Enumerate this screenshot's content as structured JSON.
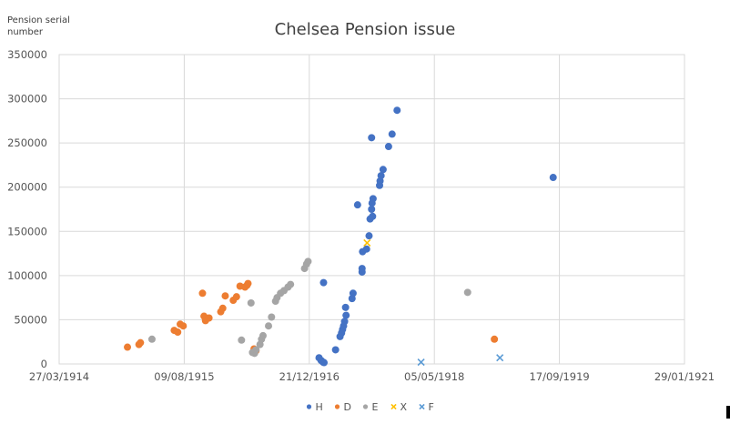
{
  "chart_data": {
    "type": "scatter",
    "title": "Chelsea Pension issue",
    "xlabel": "",
    "ylabel": "Pension serial number",
    "ylabel_lines": [
      "Pension  serial",
      "number"
    ],
    "x_axis_type": "date",
    "xlim": [
      "27/03/1914",
      "29/01/1921"
    ],
    "x_tick_labels": [
      "27/03/1914",
      "09/08/1915",
      "21/12/1916",
      "05/05/1918",
      "17/09/1919",
      "29/01/1921"
    ],
    "ylim": [
      0,
      350000
    ],
    "y_tick_labels": [
      "0",
      "50000",
      "100000",
      "150000",
      "200000",
      "250000",
      "300000",
      "350000"
    ],
    "y_ticks": [
      0,
      50000,
      100000,
      150000,
      200000,
      250000,
      300000,
      350000
    ],
    "grid": true,
    "legend_position": "bottom",
    "series": [
      {
        "name": "H",
        "color": "#4472c4",
        "marker": "circle",
        "points": [
          [
            "1917-01-29",
            7000
          ],
          [
            "1917-02-06",
            4000
          ],
          [
            "1917-02-14",
            2000
          ],
          [
            "1917-02-18",
            1500
          ],
          [
            "1917-02-16",
            92000
          ],
          [
            "1917-04-05",
            16000
          ],
          [
            "1917-04-23",
            31000
          ],
          [
            "1917-04-29",
            35000
          ],
          [
            "1917-05-03",
            39000
          ],
          [
            "1917-05-07",
            43000
          ],
          [
            "1917-05-11",
            48000
          ],
          [
            "1917-05-17",
            55000
          ],
          [
            "1917-05-15",
            64000
          ],
          [
            "1917-06-10",
            74000
          ],
          [
            "1917-06-14",
            80000
          ],
          [
            "1917-07-02",
            180000
          ],
          [
            "1917-07-20",
            104000
          ],
          [
            "1917-07-20",
            108000
          ],
          [
            "1917-07-22",
            127000
          ],
          [
            "1917-08-07",
            130000
          ],
          [
            "1917-08-17",
            145000
          ],
          [
            "1917-08-21",
            164000
          ],
          [
            "1917-08-31",
            167000
          ],
          [
            "1917-08-27",
            175000
          ],
          [
            "1917-08-29",
            182000
          ],
          [
            "1917-09-02",
            187000
          ],
          [
            "1917-08-27",
            256000
          ],
          [
            "1917-09-28",
            202000
          ],
          [
            "1917-09-30",
            207000
          ],
          [
            "1917-10-04",
            213000
          ],
          [
            "1917-10-12",
            220000
          ],
          [
            "1917-11-03",
            246000
          ],
          [
            "1917-11-17",
            260000
          ],
          [
            "1917-12-07",
            287000
          ],
          [
            "1919-08-23",
            211000
          ]
        ]
      },
      {
        "name": "D",
        "color": "#ed7d31",
        "marker": "circle",
        "points": [
          [
            "1914-12-25",
            19000
          ],
          [
            "1915-02-09",
            22000
          ],
          [
            "1915-02-15",
            24000
          ],
          [
            "1915-06-30",
            38000
          ],
          [
            "1915-07-14",
            36000
          ],
          [
            "1915-07-24",
            45000
          ],
          [
            "1915-08-05",
            43000
          ],
          [
            "1915-10-21",
            80000
          ],
          [
            "1915-10-27",
            54000
          ],
          [
            "1915-11-02",
            49000
          ],
          [
            "1915-11-16",
            52000
          ],
          [
            "1916-01-02",
            59000
          ],
          [
            "1916-01-10",
            63000
          ],
          [
            "1916-01-20",
            77000
          ],
          [
            "1916-02-21",
            72000
          ],
          [
            "1916-03-05",
            76000
          ],
          [
            "1916-03-19",
            88000
          ],
          [
            "1916-04-08",
            87000
          ],
          [
            "1916-04-16",
            89000
          ],
          [
            "1916-04-20",
            91000
          ],
          [
            "1916-05-14",
            17000
          ],
          [
            "1916-05-22",
            15000
          ],
          [
            "1918-12-31",
            28000
          ]
        ]
      },
      {
        "name": "E",
        "color": "#a5a5a5",
        "marker": "circle",
        "points": [
          [
            "1915-04-02",
            28000
          ],
          [
            "1916-03-25",
            27000
          ],
          [
            "1916-05-02",
            69000
          ],
          [
            "1916-05-08",
            13000
          ],
          [
            "1916-05-16",
            12000
          ],
          [
            "1916-05-22",
            16000
          ],
          [
            "1916-06-07",
            22000
          ],
          [
            "1916-06-13",
            28000
          ],
          [
            "1916-06-19",
            32000
          ],
          [
            "1916-07-11",
            43000
          ],
          [
            "1916-07-23",
            53000
          ],
          [
            "1916-08-08",
            71000
          ],
          [
            "1916-08-14",
            75000
          ],
          [
            "1916-08-28",
            80000
          ],
          [
            "1916-09-11",
            83000
          ],
          [
            "1916-09-27",
            87000
          ],
          [
            "1916-10-07",
            90000
          ],
          [
            "1916-12-02",
            108000
          ],
          [
            "1916-12-10",
            113000
          ],
          [
            "1916-12-16",
            116000
          ],
          [
            "1918-09-15",
            81000
          ]
        ]
      },
      {
        "name": "X",
        "color": "#ffc000",
        "marker": "x",
        "points": [
          [
            "1917-08-09",
            137000
          ]
        ]
      },
      {
        "name": "F",
        "color": "#5b9bd5",
        "marker": "x",
        "points": [
          [
            "1918-03-13",
            2000
          ],
          [
            "1919-01-22",
            7000
          ]
        ]
      }
    ]
  }
}
